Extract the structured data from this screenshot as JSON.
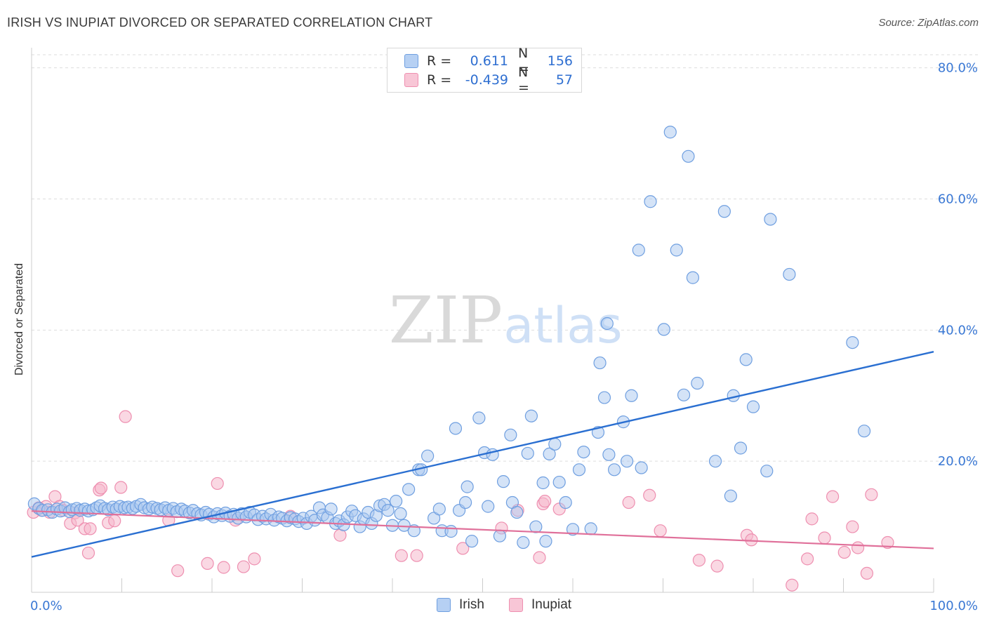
{
  "title": "IRISH VS INUPIAT DIVORCED OR SEPARATED CORRELATION CHART",
  "source": "Source: ZipAtlas.com",
  "watermark": {
    "zip": "ZIP",
    "atlas": "atlas"
  },
  "legend_top": {
    "rows": [
      {
        "r_label": "R =",
        "r_value": "0.611",
        "n_label": "N =",
        "n_value": "156"
      },
      {
        "r_label": "R =",
        "r_value": "-0.439",
        "n_label": "N =",
        "n_value": "57"
      }
    ]
  },
  "colors": {
    "irish_fill": "#a9c8f0",
    "irish_stroke": "#6f9fe0",
    "irish_line": "#2a6fd1",
    "inupiat_fill": "#f6b8cc",
    "inupiat_stroke": "#ee8fb0",
    "inupiat_line": "#e0709a",
    "tick_label": "#3a78d4",
    "grid": "#dddddd"
  },
  "chart_data": {
    "type": "scatter",
    "title": "IRISH VS INUPIAT DIVORCED OR SEPARATED CORRELATION CHART",
    "xlabel": "",
    "ylabel": "Divorced or Separated",
    "xlim": [
      0,
      100
    ],
    "ylim": [
      0,
      82
    ],
    "x_tick_labels": [
      "0.0%",
      "100.0%"
    ],
    "y_ticks": [
      20,
      40,
      60,
      80
    ],
    "y_tick_labels": [
      "20.0%",
      "40.0%",
      "60.0%",
      "80.0%"
    ],
    "grid": true,
    "legend_position": "bottom",
    "series": [
      {
        "name": "Irish",
        "R": 0.611,
        "N": 156,
        "trend": {
          "x": [
            0,
            100
          ],
          "y": [
            5.4,
            36.7
          ]
        },
        "points": [
          [
            0.3,
            13.5
          ],
          [
            0.8,
            12.8
          ],
          [
            1.2,
            12.5
          ],
          [
            1.8,
            12.6
          ],
          [
            2.3,
            12.2
          ],
          [
            2.8,
            12.7
          ],
          [
            3.2,
            12.4
          ],
          [
            3.7,
            12.9
          ],
          [
            4.2,
            12.3
          ],
          [
            4.5,
            12.6
          ],
          [
            5.0,
            12.8
          ],
          [
            5.4,
            12.5
          ],
          [
            5.9,
            12.7
          ],
          [
            6.3,
            12.4
          ],
          [
            6.8,
            12.6
          ],
          [
            7.2,
            12.9
          ],
          [
            7.6,
            13.2
          ],
          [
            8.1,
            12.8
          ],
          [
            8.5,
            12.6
          ],
          [
            9.0,
            13.0
          ],
          [
            9.4,
            12.7
          ],
          [
            9.8,
            13.1
          ],
          [
            10.3,
            12.9
          ],
          [
            10.7,
            13.0
          ],
          [
            11.2,
            12.8
          ],
          [
            11.6,
            13.1
          ],
          [
            12.1,
            13.4
          ],
          [
            12.5,
            12.9
          ],
          [
            13.0,
            12.7
          ],
          [
            13.4,
            13.0
          ],
          [
            13.9,
            12.8
          ],
          [
            14.3,
            12.6
          ],
          [
            14.8,
            12.9
          ],
          [
            15.2,
            12.5
          ],
          [
            15.7,
            12.8
          ],
          [
            16.1,
            12.3
          ],
          [
            16.6,
            12.7
          ],
          [
            17.0,
            12.4
          ],
          [
            17.5,
            12.1
          ],
          [
            17.9,
            12.5
          ],
          [
            18.4,
            12.0
          ],
          [
            18.8,
            11.8
          ],
          [
            19.3,
            12.2
          ],
          [
            19.7,
            11.9
          ],
          [
            20.2,
            11.5
          ],
          [
            20.6,
            12.0
          ],
          [
            21.1,
            11.7
          ],
          [
            21.5,
            12.1
          ],
          [
            22.0,
            11.6
          ],
          [
            22.4,
            11.9
          ],
          [
            22.9,
            11.3
          ],
          [
            23.3,
            12.0
          ],
          [
            23.8,
            11.5
          ],
          [
            24.2,
            12.2
          ],
          [
            24.7,
            11.8
          ],
          [
            25.1,
            11.1
          ],
          [
            25.6,
            11.6
          ],
          [
            26.0,
            11.2
          ],
          [
            26.5,
            11.9
          ],
          [
            26.9,
            11.0
          ],
          [
            27.4,
            11.5
          ],
          [
            27.8,
            11.3
          ],
          [
            28.3,
            10.9
          ],
          [
            28.7,
            11.4
          ],
          [
            29.2,
            11.2
          ],
          [
            29.6,
            10.8
          ],
          [
            30.1,
            11.3
          ],
          [
            30.5,
            10.5
          ],
          [
            31.0,
            11.6
          ],
          [
            31.4,
            11.0
          ],
          [
            31.9,
            12.9
          ],
          [
            32.3,
            11.8
          ],
          [
            32.8,
            11.4
          ],
          [
            33.2,
            12.7
          ],
          [
            33.7,
            10.5
          ],
          [
            34.1,
            10.9
          ],
          [
            34.6,
            10.3
          ],
          [
            35.0,
            11.5
          ],
          [
            35.5,
            12.4
          ],
          [
            35.9,
            11.7
          ],
          [
            36.4,
            10.0
          ],
          [
            36.8,
            11.2
          ],
          [
            37.3,
            12.2
          ],
          [
            37.7,
            10.5
          ],
          [
            38.2,
            11.7
          ],
          [
            38.6,
            13.2
          ],
          [
            39.1,
            13.4
          ],
          [
            39.5,
            12.5
          ],
          [
            40.0,
            10.2
          ],
          [
            40.4,
            13.9
          ],
          [
            40.9,
            12.0
          ],
          [
            41.3,
            10.2
          ],
          [
            41.8,
            15.7
          ],
          [
            42.4,
            9.4
          ],
          [
            42.9,
            18.7
          ],
          [
            43.2,
            18.7
          ],
          [
            43.9,
            20.8
          ],
          [
            44.6,
            11.3
          ],
          [
            45.2,
            12.7
          ],
          [
            45.5,
            9.4
          ],
          [
            46.5,
            9.3
          ],
          [
            47.0,
            25.0
          ],
          [
            47.4,
            12.5
          ],
          [
            48.1,
            13.7
          ],
          [
            48.3,
            16.1
          ],
          [
            48.8,
            7.8
          ],
          [
            49.6,
            26.6
          ],
          [
            50.2,
            21.3
          ],
          [
            50.6,
            13.1
          ],
          [
            51.1,
            21.0
          ],
          [
            51.9,
            8.6
          ],
          [
            52.3,
            16.9
          ],
          [
            53.1,
            24.0
          ],
          [
            53.3,
            13.7
          ],
          [
            53.8,
            12.2
          ],
          [
            54.5,
            7.6
          ],
          [
            55.0,
            21.2
          ],
          [
            55.4,
            26.9
          ],
          [
            55.9,
            10.0
          ],
          [
            56.7,
            16.7
          ],
          [
            57.4,
            21.1
          ],
          [
            58.0,
            22.6
          ],
          [
            58.5,
            16.8
          ],
          [
            59.2,
            13.7
          ],
          [
            60.0,
            9.6
          ],
          [
            60.7,
            18.7
          ],
          [
            61.2,
            21.4
          ],
          [
            62.0,
            9.7
          ],
          [
            62.8,
            24.4
          ],
          [
            63.5,
            29.7
          ],
          [
            64.0,
            21.0
          ],
          [
            64.6,
            18.7
          ],
          [
            65.6,
            26.0
          ],
          [
            66.0,
            20.0
          ],
          [
            67.3,
            52.2
          ],
          [
            67.6,
            19.0
          ],
          [
            68.6,
            59.6
          ],
          [
            70.1,
            40.1
          ],
          [
            70.8,
            70.2
          ],
          [
            71.5,
            52.2
          ],
          [
            72.3,
            30.1
          ],
          [
            72.8,
            66.5
          ],
          [
            73.3,
            48.0
          ],
          [
            73.8,
            31.9
          ],
          [
            75.8,
            20.0
          ],
          [
            76.8,
            58.1
          ],
          [
            77.5,
            14.7
          ],
          [
            78.6,
            22.0
          ],
          [
            79.2,
            35.5
          ],
          [
            80.0,
            28.3
          ],
          [
            81.5,
            18.5
          ],
          [
            81.9,
            56.9
          ],
          [
            84.0,
            48.5
          ],
          [
            91.0,
            38.1
          ],
          [
            92.3,
            24.6
          ],
          [
            66.5,
            30.0
          ],
          [
            57.0,
            7.8
          ],
          [
            63.0,
            35.0
          ],
          [
            77.8,
            30.0
          ],
          [
            63.8,
            41.0
          ]
        ]
      },
      {
        "name": "Inupiat",
        "R": -0.439,
        "N": 57,
        "trend": {
          "x": [
            0,
            100
          ],
          "y": [
            12.4,
            6.7
          ]
        },
        "points": [
          [
            0.2,
            12.2
          ],
          [
            0.8,
            12.9
          ],
          [
            1.1,
            12.5
          ],
          [
            1.6,
            13.1
          ],
          [
            2.0,
            12.2
          ],
          [
            2.6,
            14.6
          ],
          [
            3.1,
            13.1
          ],
          [
            3.5,
            12.5
          ],
          [
            4.3,
            10.5
          ],
          [
            4.8,
            12.1
          ],
          [
            5.1,
            11.0
          ],
          [
            5.9,
            9.7
          ],
          [
            6.3,
            6.0
          ],
          [
            6.5,
            9.7
          ],
          [
            7.5,
            15.6
          ],
          [
            7.7,
            15.9
          ],
          [
            8.5,
            10.6
          ],
          [
            9.2,
            10.9
          ],
          [
            9.9,
            16.0
          ],
          [
            10.4,
            26.8
          ],
          [
            15.2,
            11.0
          ],
          [
            16.2,
            3.3
          ],
          [
            19.5,
            4.4
          ],
          [
            20.6,
            16.6
          ],
          [
            21.3,
            3.8
          ],
          [
            22.6,
            11.0
          ],
          [
            23.5,
            3.9
          ],
          [
            24.7,
            5.1
          ],
          [
            28.7,
            11.6
          ],
          [
            34.2,
            8.7
          ],
          [
            41.0,
            5.6
          ],
          [
            42.7,
            5.6
          ],
          [
            47.8,
            6.7
          ],
          [
            52.1,
            9.8
          ],
          [
            53.9,
            12.5
          ],
          [
            56.3,
            5.3
          ],
          [
            56.7,
            13.5
          ],
          [
            56.9,
            13.9
          ],
          [
            58.5,
            12.7
          ],
          [
            66.2,
            13.7
          ],
          [
            68.5,
            14.8
          ],
          [
            69.7,
            9.4
          ],
          [
            74.0,
            4.9
          ],
          [
            76.0,
            4.0
          ],
          [
            79.3,
            8.7
          ],
          [
            79.8,
            8.0
          ],
          [
            84.3,
            1.1
          ],
          [
            86.0,
            5.1
          ],
          [
            86.5,
            11.2
          ],
          [
            87.9,
            8.3
          ],
          [
            88.8,
            14.6
          ],
          [
            90.1,
            6.1
          ],
          [
            91.0,
            10.0
          ],
          [
            91.6,
            6.8
          ],
          [
            92.6,
            2.9
          ],
          [
            93.1,
            14.9
          ],
          [
            94.9,
            7.6
          ]
        ]
      }
    ]
  },
  "legend_bottom": {
    "irish": "Irish",
    "inupiat": "Inupiat"
  }
}
